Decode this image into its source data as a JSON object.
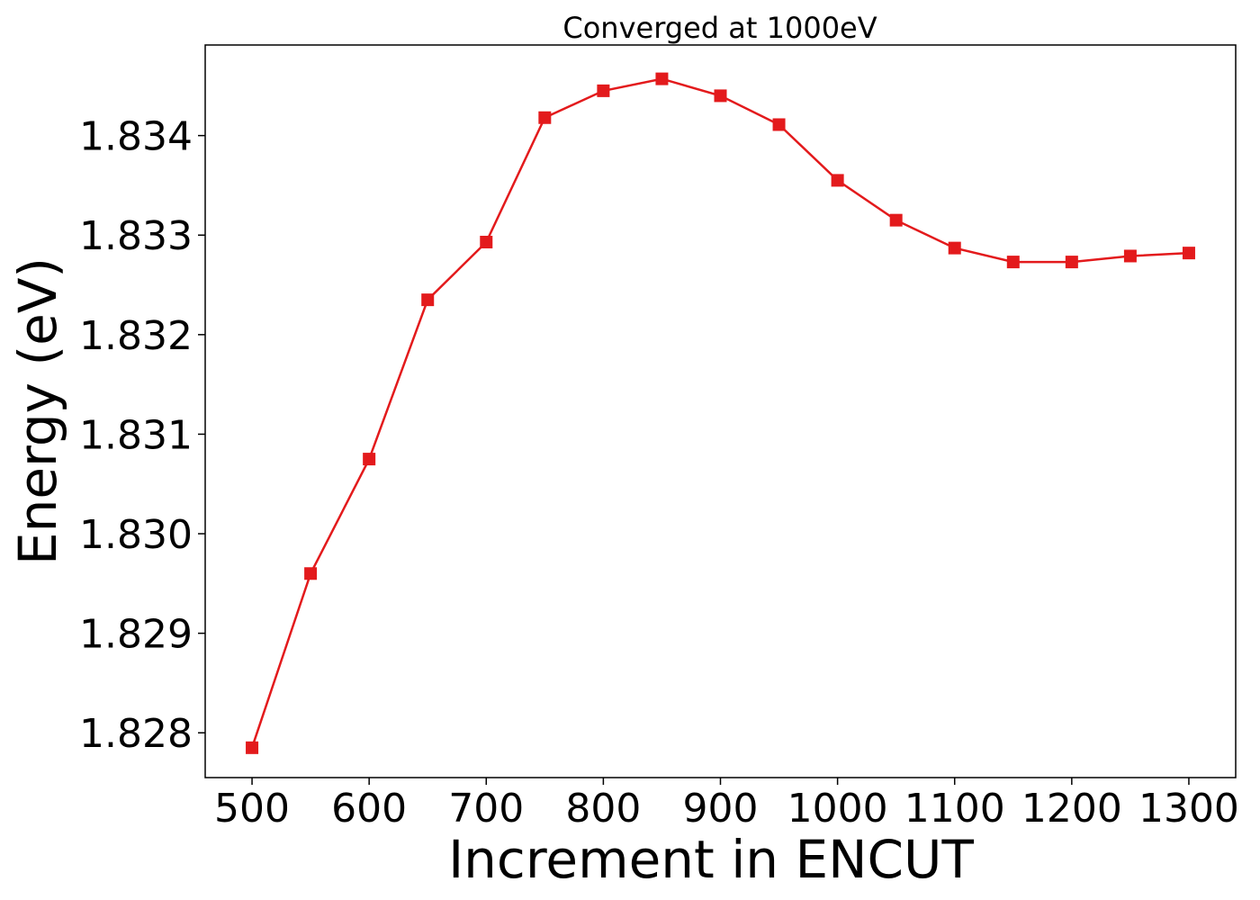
{
  "chart_data": {
    "type": "line",
    "title": "Converged at 1000eV",
    "xlabel": "Increment in ENCUT",
    "ylabel": "Energy (eV)",
    "x": [
      500,
      550,
      600,
      650,
      700,
      750,
      800,
      850,
      900,
      950,
      1000,
      1050,
      1100,
      1150,
      1200,
      1250,
      1300
    ],
    "series": [
      {
        "values": [
          1.82785,
          1.8296,
          1.83075,
          1.83235,
          1.83293,
          1.83418,
          1.83445,
          1.83457,
          1.8344,
          1.83411,
          1.83355,
          1.83315,
          1.83287,
          1.83273,
          1.83273,
          1.83279,
          1.83282
        ],
        "color": "#e31a1c",
        "marker": "square"
      }
    ],
    "xticks": [
      "500",
      "600",
      "700",
      "800",
      "900",
      "1000",
      "1100",
      "1200",
      "1300"
    ],
    "yticks": [
      "1.828",
      "1.829",
      "1.830",
      "1.831",
      "1.832",
      "1.833",
      "1.834"
    ],
    "xlim": [
      460,
      1340
    ],
    "ylim": [
      1.82755,
      1.83491
    ],
    "grid": false,
    "legend": "none"
  }
}
